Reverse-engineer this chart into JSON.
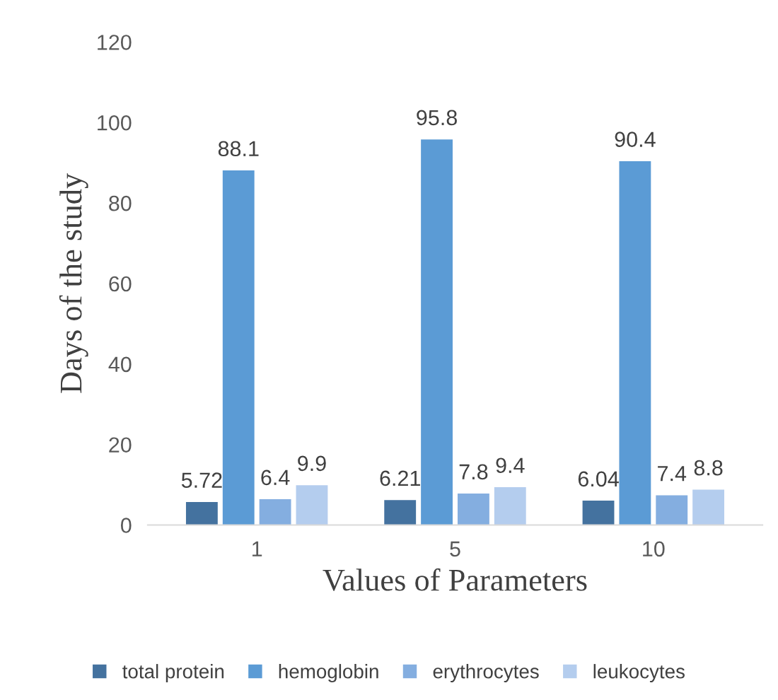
{
  "chart_data": {
    "type": "bar",
    "xlabel": "Values of Parameters",
    "ylabel": "Days of the study",
    "categories": [
      "1",
      "5",
      "10"
    ],
    "series": [
      {
        "name": "total protein",
        "color": "#44729f",
        "values": [
          5.72,
          6.21,
          6.04
        ]
      },
      {
        "name": "hemoglobin",
        "color": "#5b9bd5",
        "values": [
          88.1,
          95.8,
          90.4
        ]
      },
      {
        "name": "erythrocytes",
        "color": "#84aee0",
        "values": [
          6.4,
          7.8,
          7.4
        ]
      },
      {
        "name": "leukocytes",
        "color": "#b4cdee",
        "values": [
          9.9,
          9.4,
          8.8
        ]
      }
    ],
    "ylim": [
      0,
      120
    ],
    "yticks": [
      0,
      20,
      40,
      60,
      80,
      100,
      120
    ],
    "grid": false,
    "legend": "bottom",
    "data_labels": true
  }
}
